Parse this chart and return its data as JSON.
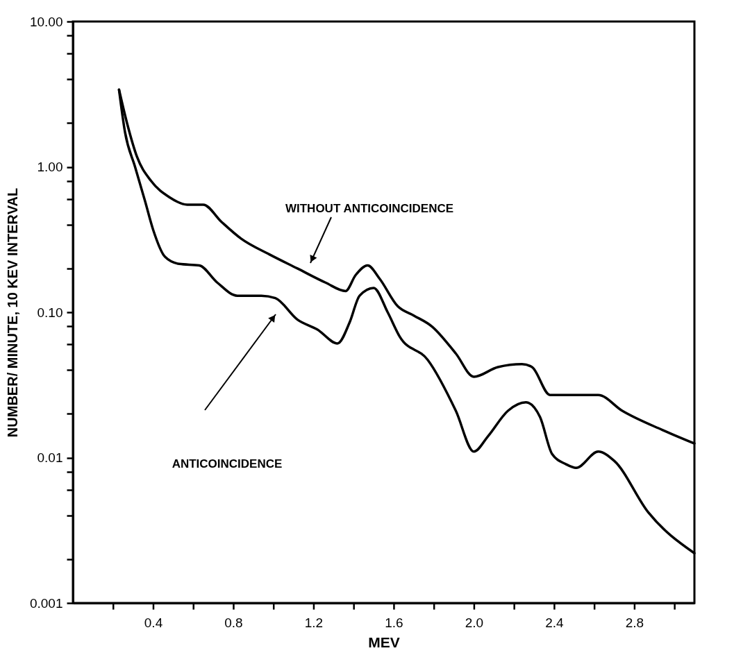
{
  "chart_data": {
    "type": "line",
    "xlabel": "MEV",
    "ylabel": "NUMBER/ MINUTE,  10 KEV INTERVAL",
    "log": "y",
    "grid": false,
    "marker": "none",
    "line_style": "solid",
    "xlim": [
      0,
      3.1
    ],
    "ylim": [
      0.001,
      10
    ],
    "xticks": [
      {
        "value": 0.2,
        "label": null
      },
      {
        "value": 0.4,
        "label": "0.4"
      },
      {
        "value": 0.6,
        "label": null
      },
      {
        "value": 0.8,
        "label": "0.8"
      },
      {
        "value": 1.0,
        "label": null
      },
      {
        "value": 1.2,
        "label": "1.2"
      },
      {
        "value": 1.4,
        "label": null
      },
      {
        "value": 1.6,
        "label": "1.6"
      },
      {
        "value": 1.8,
        "label": null
      },
      {
        "value": 2.0,
        "label": "2.0"
      },
      {
        "value": 2.2,
        "label": null
      },
      {
        "value": 2.4,
        "label": "2.4"
      },
      {
        "value": 2.6,
        "label": null
      },
      {
        "value": 2.8,
        "label": "2.8"
      },
      {
        "value": 3.0,
        "label": null
      }
    ],
    "yticks": [
      {
        "value": 0.001,
        "label": "0.001"
      },
      {
        "value": 0.002,
        "label": null
      },
      {
        "value": 0.004,
        "label": null
      },
      {
        "value": 0.006,
        "label": null
      },
      {
        "value": 0.008,
        "label": null
      },
      {
        "value": 0.01,
        "label": "0.01"
      },
      {
        "value": 0.02,
        "label": null
      },
      {
        "value": 0.04,
        "label": null
      },
      {
        "value": 0.06,
        "label": null
      },
      {
        "value": 0.08,
        "label": null
      },
      {
        "value": 0.1,
        "label": "0.10"
      },
      {
        "value": 0.2,
        "label": null
      },
      {
        "value": 0.4,
        "label": null
      },
      {
        "value": 0.6,
        "label": null
      },
      {
        "value": 0.8,
        "label": null
      },
      {
        "value": 1,
        "label": "1.00"
      },
      {
        "value": 2,
        "label": null
      },
      {
        "value": 4,
        "label": null
      },
      {
        "value": 6,
        "label": null
      },
      {
        "value": 8,
        "label": null
      },
      {
        "value": 10,
        "label": "10.00"
      }
    ],
    "series": [
      {
        "color": "#000000",
        "x": [
          0.23,
          0.27,
          0.32,
          0.39,
          0.48,
          0.57,
          0.65,
          0.74,
          0.84,
          0.98,
          1.12,
          1.26,
          1.36,
          1.41,
          1.47,
          1.53,
          1.62,
          1.7,
          1.79,
          1.91,
          2.0,
          2.12,
          2.24,
          2.29,
          2.38,
          2.5,
          2.62,
          2.74,
          2.94,
          3.1
        ],
        "values": [
          3.4,
          2.0,
          1.17,
          0.8,
          0.62,
          0.55,
          0.55,
          0.42,
          0.32,
          0.25,
          0.2,
          0.16,
          0.14,
          0.18,
          0.21,
          0.17,
          0.11,
          0.095,
          0.08,
          0.052,
          0.036,
          0.042,
          0.044,
          0.042,
          0.027,
          0.027,
          0.027,
          0.021,
          0.0155,
          0.0125
        ]
      },
      {
        "color": "#000000",
        "x": [
          0.23,
          0.26,
          0.31,
          0.36,
          0.4,
          0.46,
          0.53,
          0.63,
          0.72,
          0.82,
          0.94,
          1.01,
          1.12,
          1.22,
          1.32,
          1.38,
          1.43,
          1.5,
          1.57,
          1.63,
          1.77,
          1.91,
          2.0,
          2.07,
          2.17,
          2.26,
          2.33,
          2.39,
          2.46,
          2.51,
          2.62,
          2.7,
          2.87,
          3.1
        ],
        "values": [
          3.4,
          1.73,
          1.0,
          0.58,
          0.37,
          0.24,
          0.215,
          0.21,
          0.16,
          0.13,
          0.13,
          0.125,
          0.089,
          0.076,
          0.061,
          0.085,
          0.13,
          0.147,
          0.1,
          0.068,
          0.047,
          0.021,
          0.011,
          0.014,
          0.021,
          0.024,
          0.019,
          0.0106,
          0.009,
          0.0085,
          0.011,
          0.0095,
          0.0042,
          0.0022
        ]
      }
    ],
    "annotations": [
      "WITHOUT ANTICOINCIDENCE",
      "ANTICOINCIDENCE"
    ]
  }
}
